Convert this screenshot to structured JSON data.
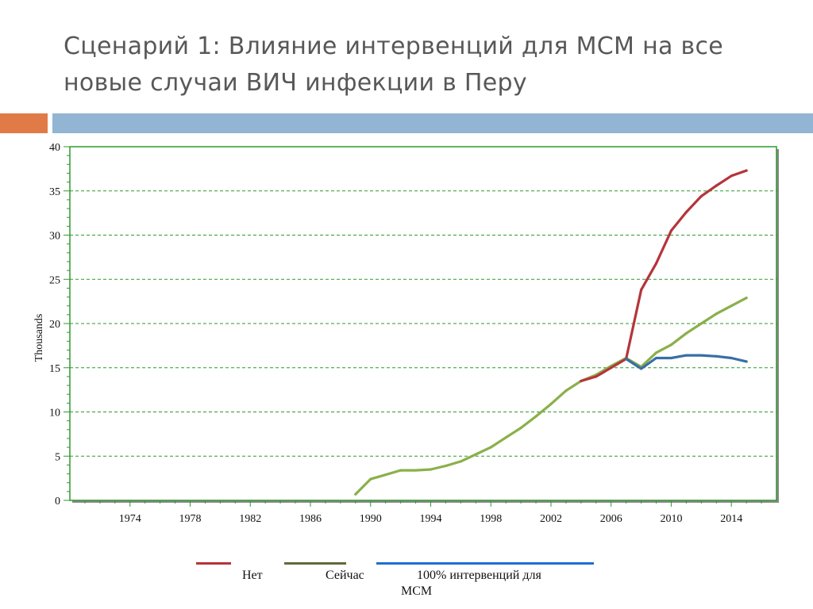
{
  "slide": {
    "title_line1": "Сценарий 1: Влияние интервенций для МСМ на все",
    "title_line2": "новые случаи ВИЧ инфекции в Перу"
  },
  "chart_data": {
    "type": "line",
    "ylabel": "Thousands",
    "xlabel": "",
    "xlim": [
      1970,
      2017
    ],
    "ylim": [
      0,
      40
    ],
    "x_ticks": [
      1974,
      1978,
      1982,
      1986,
      1990,
      1994,
      1998,
      2002,
      2006,
      2010,
      2014
    ],
    "y_ticks": [
      0,
      5,
      10,
      15,
      20,
      25,
      30,
      35,
      40
    ],
    "grid": true,
    "legend_position": "bottom",
    "series": [
      {
        "name": "Нет",
        "color": "#b5353a",
        "x": [
          2004,
          2005,
          2006,
          2007,
          2008,
          2009,
          2010,
          2011,
          2012,
          2013,
          2014,
          2015
        ],
        "y": [
          13.5,
          14.0,
          15.0,
          16.0,
          23.8,
          26.8,
          30.5,
          32.6,
          34.4,
          35.6,
          36.7,
          37.3
        ]
      },
      {
        "name": "Сейчас",
        "color": "#8ab04a",
        "x": [
          1989,
          1990,
          1991,
          1992,
          1993,
          1994,
          1995,
          1996,
          1997,
          1998,
          1999,
          2000,
          2001,
          2002,
          2003,
          2004,
          2005,
          2006,
          2007,
          2008,
          2009,
          2010,
          2011,
          2012,
          2013,
          2014,
          2015
        ],
        "y": [
          0.7,
          2.4,
          2.9,
          3.4,
          3.4,
          3.5,
          3.9,
          4.4,
          5.2,
          6.0,
          7.1,
          8.2,
          9.5,
          10.9,
          12.4,
          13.5,
          14.2,
          15.2,
          16.1,
          15.1,
          16.7,
          17.6,
          18.9,
          20.0,
          21.1,
          22.0,
          22.9
        ]
      },
      {
        "name": "100% интервенций для МСМ",
        "color": "#3a6ea5",
        "x": [
          2007,
          2008,
          2009,
          2010,
          2011,
          2012,
          2013,
          2014,
          2015
        ],
        "y": [
          16.0,
          14.9,
          16.1,
          16.1,
          16.4,
          16.4,
          16.3,
          16.1,
          15.7
        ]
      }
    ]
  },
  "legend": {
    "items": [
      {
        "label": "Нет",
        "color": "#b5353a"
      },
      {
        "label": "Сейчас",
        "color": "#5f6b3c"
      },
      {
        "label": "100% интервенций для МСМ",
        "color": "#1f6fd1"
      }
    ]
  }
}
